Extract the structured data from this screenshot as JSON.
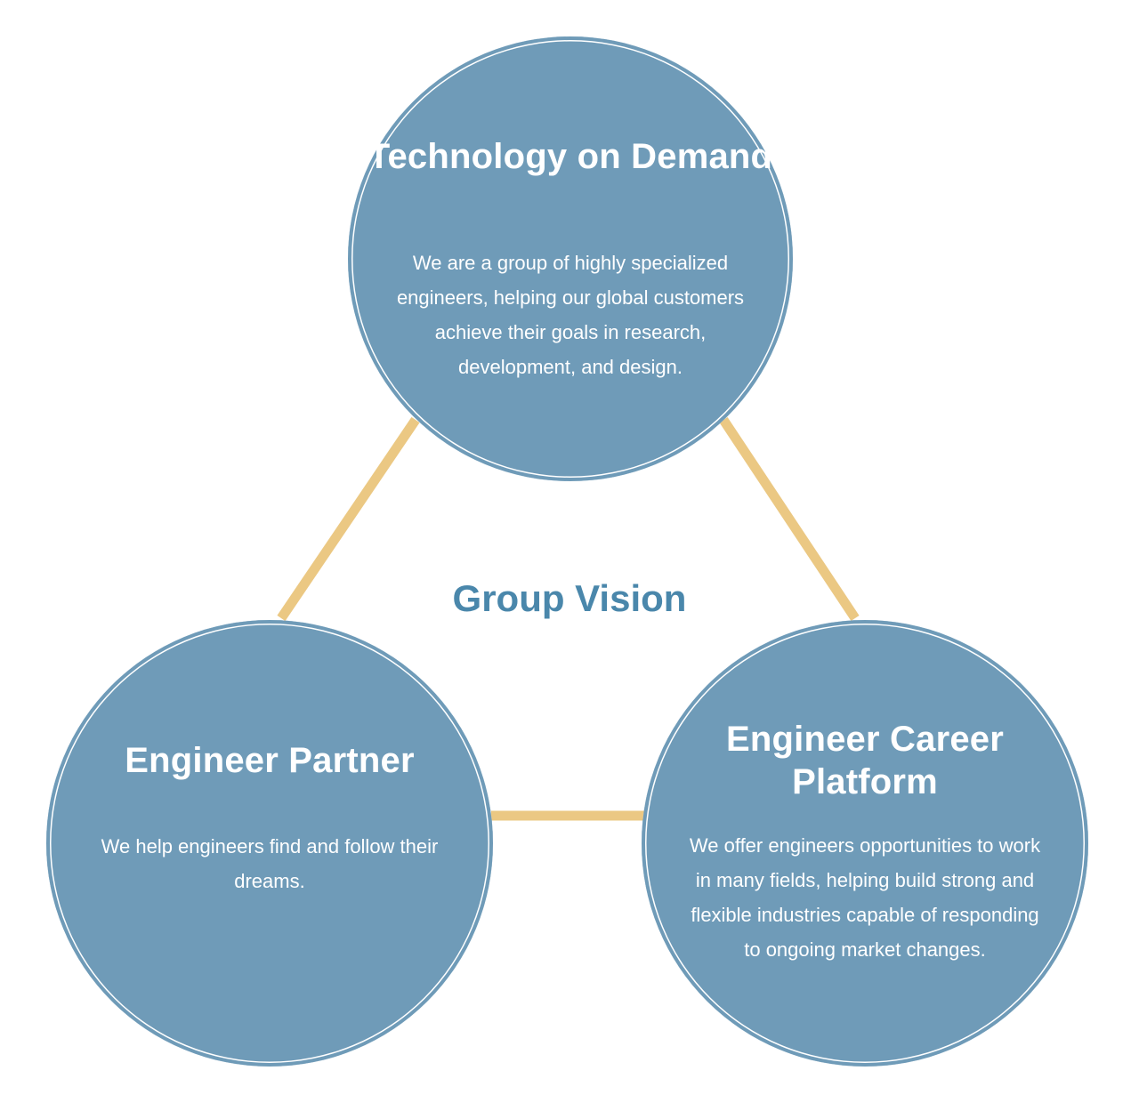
{
  "center": {
    "title": "Group Vision"
  },
  "nodes": {
    "top": {
      "title": "Technology on Demand",
      "description": "We are a group of highly specialized engineers, helping our global customers achieve their goals in research, development, and design."
    },
    "left": {
      "title": "Engineer Partner",
      "description": "We help engineers find and follow their dreams."
    },
    "right": {
      "title": "Engineer Career Platform",
      "description": "We offer engineers opportunities to work in many fields, helping build strong and flexible industries capable of responding to ongoing market changes."
    }
  },
  "colors": {
    "circle_fill": "#6f9bb8",
    "connector": "#ebc883",
    "center_text": "#4a87ab",
    "node_text": "#ffffff"
  }
}
